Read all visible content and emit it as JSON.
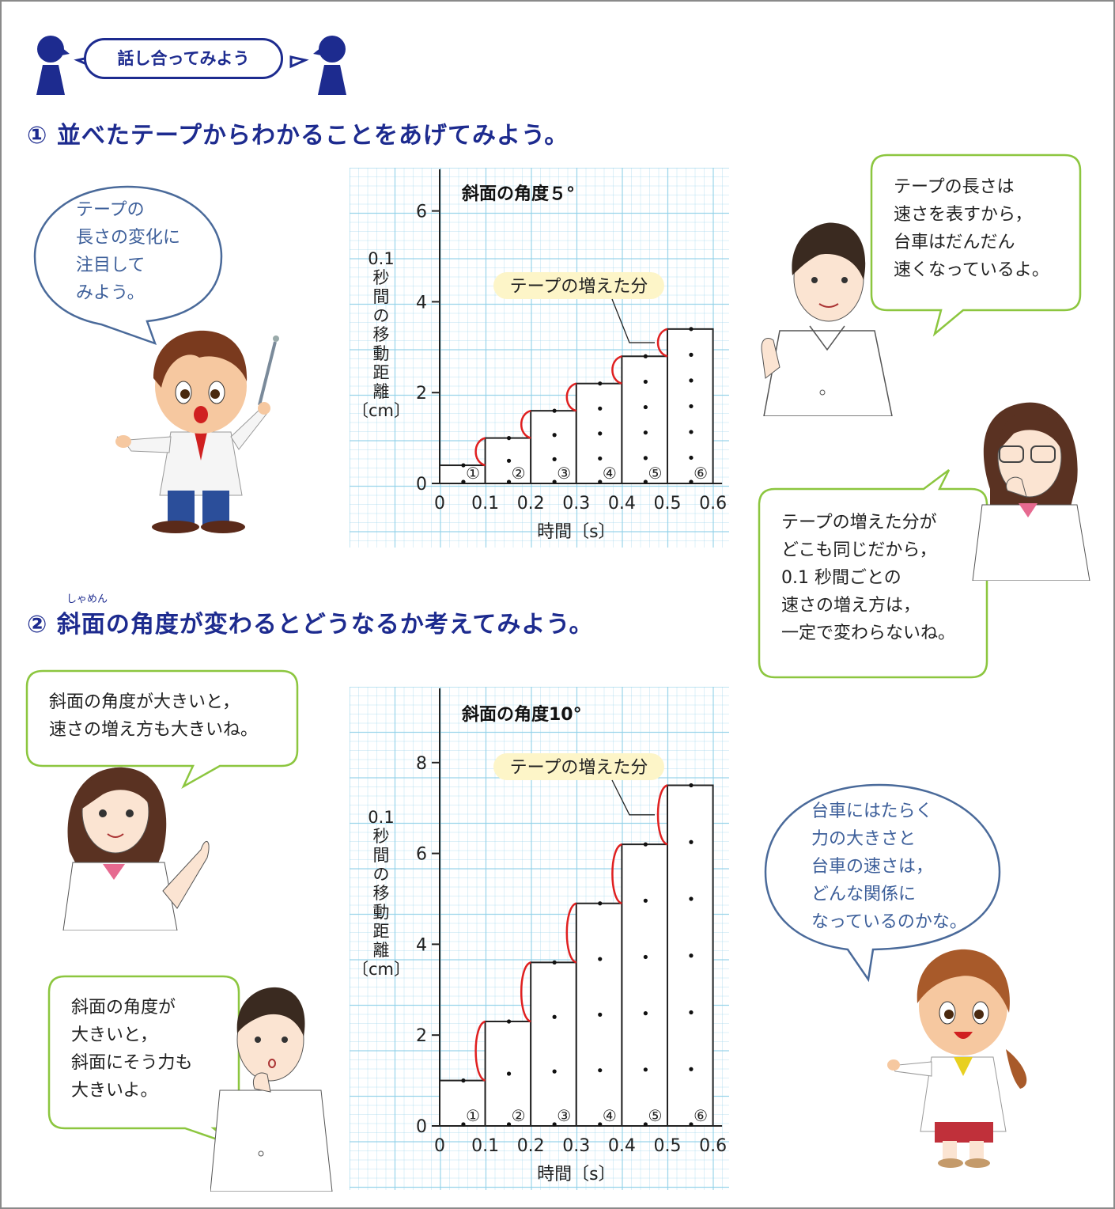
{
  "header": {
    "badge_label": "話し合ってみよう"
  },
  "section1": {
    "heading": "① 並べたテープからわかることをあげてみよう。"
  },
  "section2": {
    "ruby": "しゃめん",
    "heading": "② 斜面の角度が変わるとどうなるか考えてみよう。"
  },
  "bubbles": {
    "teacher_left": "テープの\n長さの変化に\n注目して\nみよう。",
    "boy_top": "テープの長さは\n速さを表すから，\n台車はだんだん\n速くなっているよ。",
    "girl_glasses": "テープの増えた分が\nどこも同じだから，\n0.1 秒間ごとの\n速さの増え方は，\n一定で変わらないね。",
    "girl_left": "斜面の角度が大きいと，\n速さの増え方も大きいね。",
    "boy_bottom": "斜面の角度が\n大きいと，\n斜面にそう力も\n大きいよ。",
    "teacher_right": "台車にはたらく\n力の大きさと\n台車の速さは，\nどんな関係に\nなっているのかな。"
  },
  "chart_data": [
    {
      "type": "bar",
      "title": "斜面の角度５°",
      "annotation": "テープの増えた分",
      "xlabel": "時間〔s〕",
      "ylabel": "0.1秒間の移動距離〔cm〕",
      "x_ticks": [
        "0",
        "0.1",
        "0.2",
        "0.3",
        "0.4",
        "0.5",
        "0.6"
      ],
      "y_ticks": [
        "0",
        "2",
        "4",
        "6"
      ],
      "ylim": [
        0,
        7
      ],
      "categories": [
        "①",
        "②",
        "③",
        "④",
        "⑤",
        "⑥"
      ],
      "values": [
        0.4,
        1.0,
        1.6,
        2.2,
        2.8,
        3.4
      ],
      "grid": true
    },
    {
      "type": "bar",
      "title": "斜面の角度10°",
      "annotation": "テープの増えた分",
      "xlabel": "時間〔s〕",
      "ylabel": "0.1秒間の移動距離〔cm〕",
      "x_ticks": [
        "0",
        "0.1",
        "0.2",
        "0.3",
        "0.4",
        "0.5",
        "0.6"
      ],
      "y_ticks": [
        "0",
        "2",
        "4",
        "6",
        "8"
      ],
      "ylim": [
        0,
        9.6
      ],
      "categories": [
        "①",
        "②",
        "③",
        "④",
        "⑤",
        "⑥"
      ],
      "values": [
        1.0,
        2.3,
        3.6,
        4.9,
        6.2,
        7.5
      ],
      "grid": true
    }
  ],
  "colors": {
    "heading": "#1d2b8f",
    "grid": "#8fd0e8",
    "bracket": "#e02020",
    "bubble_green": "#8cc63f",
    "bubble_blue": "#4a6a9a"
  }
}
